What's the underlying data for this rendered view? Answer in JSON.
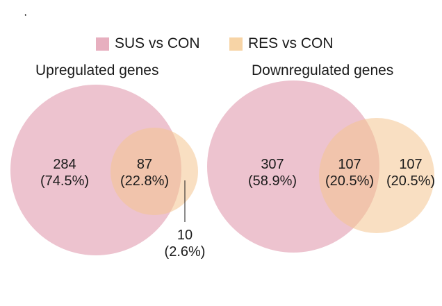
{
  "corner_mark": "ʿ",
  "colors": {
    "sus": "#e7afbf",
    "res": "#f7d4a6"
  },
  "legend": [
    {
      "label": "SUS vs CON",
      "color": "#e7afbf"
    },
    {
      "label": "RES vs CON",
      "color": "#f7d4a6"
    }
  ],
  "panels": {
    "up": {
      "title": "Upregulated genes",
      "sus_only": {
        "count": "284",
        "pct": "(74.5%)"
      },
      "overlap": {
        "count": "87",
        "pct": "(22.8%)"
      },
      "res_only": {
        "count": "10",
        "pct": "(2.6%)"
      }
    },
    "down": {
      "title": "Downregulated genes",
      "sus_only": {
        "count": "307",
        "pct": "(58.9%)"
      },
      "overlap": {
        "count": "107",
        "pct": "(20.5%)"
      },
      "res_only": {
        "count": "107",
        "pct": "(20.5%)"
      }
    }
  }
}
